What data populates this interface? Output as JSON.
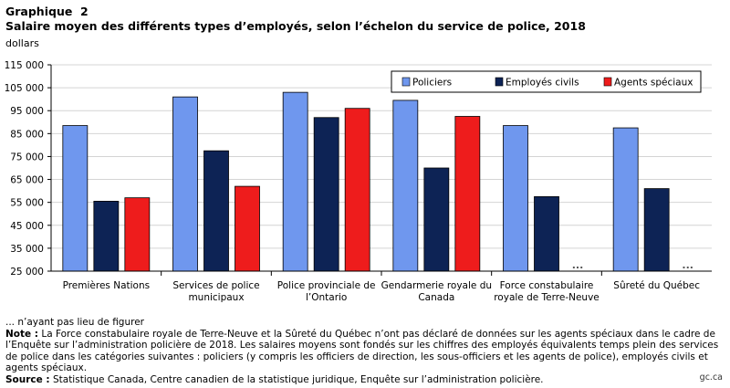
{
  "header": {
    "label": "Graphique  2",
    "title": "Salaire moyen des différents types d’employés, selon l’échelon du service de police, 2018",
    "unit": "dollars"
  },
  "chart_data": {
    "type": "bar",
    "categories": [
      [
        "Premières Nations"
      ],
      [
        "Services de police",
        "municipaux"
      ],
      [
        "Police provinciale de",
        "l’Ontario"
      ],
      [
        "Gendarmerie royale du",
        "Canada"
      ],
      [
        "Force constabulaire",
        "royale de Terre-Neuve"
      ],
      [
        "Sûreté du Québec"
      ]
    ],
    "series": [
      {
        "name": "Policiers",
        "color": "#6f97ee",
        "values": [
          88500,
          101000,
          103000,
          99500,
          88500,
          87500
        ]
      },
      {
        "name": "Employés civils",
        "color": "#0d2355",
        "values": [
          55500,
          77500,
          92000,
          70000,
          57500,
          61000
        ]
      },
      {
        "name": "Agents spéciaux",
        "color": "#ee1c1c",
        "values": [
          57000,
          62000,
          96000,
          92500,
          null,
          null
        ]
      }
    ],
    "missing_marker": "...",
    "ylim": [
      25000,
      115000
    ],
    "yticks": [
      "25 000",
      "35 000",
      "45 000",
      "55 000",
      "65 000",
      "75 000",
      "85 000",
      "95 000",
      "105 000",
      "115 000"
    ],
    "ytick_values": [
      25000,
      35000,
      45000,
      55000,
      65000,
      75000,
      85000,
      95000,
      105000,
      115000
    ],
    "grid": true,
    "legend_position": "top-right"
  },
  "footnotes": {
    "na": "... n’ayant pas lieu de figurer",
    "note_label": "Note :",
    "note_text": " La Force constabulaire royale de Terre-Neuve et la Sûreté du Québec n’ont pas déclaré de données sur les agents spéciaux dans le cadre de l’Enquête sur l’administration policière de 2018. Les salaires moyens sont fondés sur les chiffres des employés équivalents temps plein des services de police dans les catégories suivantes : policiers (y compris les officiers de direction, les sous-officiers et les agents de police), employés civils et agents spéciaux.",
    "source_label": "Source :",
    "source_text": " Statistique Canada, Centre canadien de la statistique juridique, Enquête sur l’administration policière."
  },
  "watermark": "gc.ca"
}
